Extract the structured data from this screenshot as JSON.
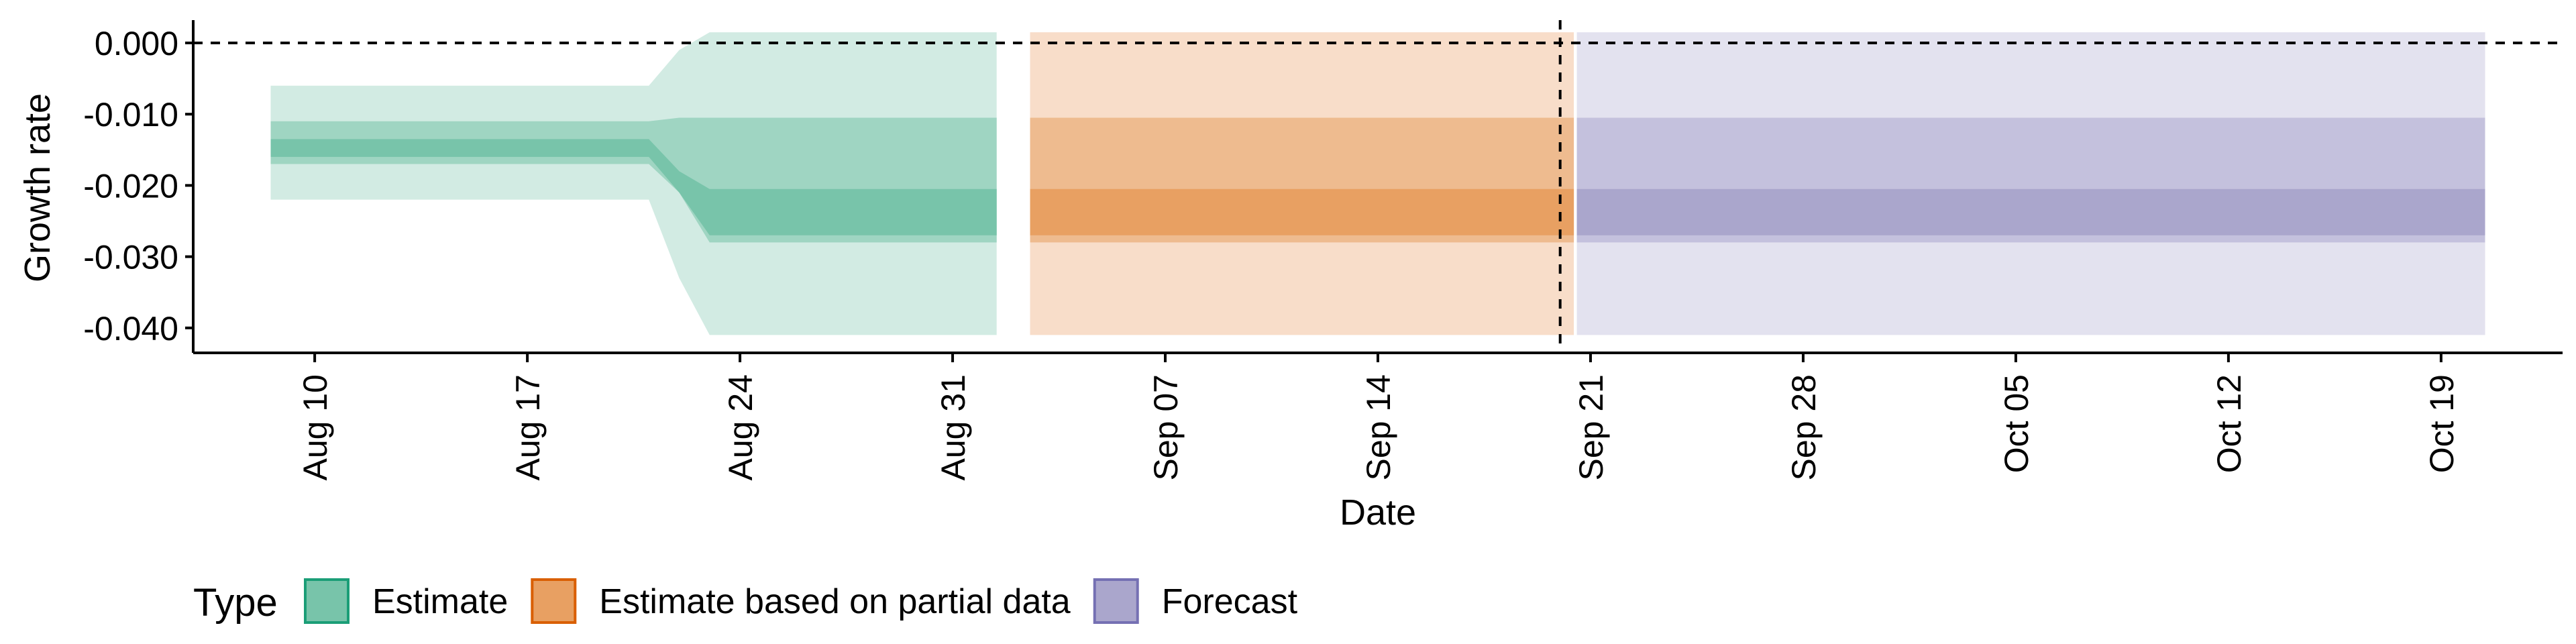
{
  "chart_data": {
    "type": "area",
    "title": "",
    "xlabel": "Date",
    "ylabel": "Growth rate",
    "x_range": [
      "2020-08-06",
      "2020-10-23"
    ],
    "ylim": [
      -0.0435,
      0.0032
    ],
    "y_ticks": [
      0.0,
      -0.01,
      -0.02,
      -0.03,
      -0.04
    ],
    "y_tick_labels": [
      "0.000",
      "-0.010",
      "-0.020",
      "-0.030",
      "-0.040"
    ],
    "x_ticks": [
      "2020-08-10",
      "2020-08-17",
      "2020-08-24",
      "2020-08-31",
      "2020-09-07",
      "2020-09-14",
      "2020-09-21",
      "2020-09-28",
      "2020-10-05",
      "2020-10-12",
      "2020-10-19"
    ],
    "x_tick_labels": [
      "Aug 10",
      "Aug 17",
      "Aug 24",
      "Aug 31",
      "Sep 07",
      "Sep 14",
      "Sep 21",
      "Sep 28",
      "Oct 05",
      "Oct 12",
      "Oct 19"
    ],
    "reference_lines": [
      {
        "orientation": "horizontal",
        "value": 0.0,
        "style": "dashed"
      },
      {
        "orientation": "vertical",
        "value": "2020-09-20",
        "style": "dashed"
      }
    ],
    "grid": false,
    "legend": {
      "title": "Type",
      "position": "bottom-left",
      "entries": [
        {
          "label": "Estimate",
          "fill": "#78c4aa",
          "border": "#1b9e77"
        },
        {
          "label": "Estimate based on partial data",
          "fill": "#e8a062",
          "border": "#d95f02"
        },
        {
          "label": "Forecast",
          "fill": "#aaa6cc",
          "border": "#7570b3"
        }
      ]
    },
    "series": [
      {
        "name": "Estimate",
        "colors": {
          "outer": "#d2ebe3",
          "middle": "#9fd5c2",
          "inner": "#78c4aa"
        },
        "x": [
          "2020-08-09",
          "2020-08-21",
          "2020-08-22",
          "2020-08-23",
          "2020-09-01"
        ],
        "outer_lower": [
          -0.022,
          -0.022,
          -0.033,
          -0.041,
          -0.041
        ],
        "outer_upper": [
          -0.006,
          -0.006,
          -0.001,
          0.0015,
          0.0015
        ],
        "middle_lower": [
          -0.017,
          -0.017,
          -0.021,
          -0.028,
          -0.028
        ],
        "middle_upper": [
          -0.011,
          -0.011,
          -0.0105,
          -0.0105,
          -0.0105
        ],
        "inner_lower": [
          -0.016,
          -0.016,
          -0.021,
          -0.027,
          -0.027
        ],
        "inner_upper": [
          -0.0135,
          -0.0135,
          -0.018,
          -0.0205,
          -0.0205
        ]
      },
      {
        "name": "Estimate based on partial data",
        "colors": {
          "outer": "#f8ddc9",
          "middle": "#eebb8f",
          "inner": "#e8a062"
        },
        "x": [
          "2020-09-03",
          "2020-09-20"
        ],
        "outer_lower": [
          -0.041,
          -0.041
        ],
        "outer_upper": [
          0.0015,
          0.0015
        ],
        "middle_lower": [
          -0.028,
          -0.028
        ],
        "middle_upper": [
          -0.0105,
          -0.0105
        ],
        "inner_lower": [
          -0.027,
          -0.027
        ],
        "inner_upper": [
          -0.0205,
          -0.0205
        ]
      },
      {
        "name": "Forecast",
        "colors": {
          "outer": "#e3e2ef",
          "middle": "#c4c1dd",
          "inner": "#aaa6cc"
        },
        "x": [
          "2020-09-21",
          "2020-10-20"
        ],
        "outer_lower": [
          -0.041,
          -0.041
        ],
        "outer_upper": [
          0.0015,
          0.0015
        ],
        "middle_lower": [
          -0.028,
          -0.028
        ],
        "middle_upper": [
          -0.0105,
          -0.0105
        ],
        "inner_lower": [
          -0.027,
          -0.027
        ],
        "inner_upper": [
          -0.0205,
          -0.0205
        ]
      }
    ]
  }
}
